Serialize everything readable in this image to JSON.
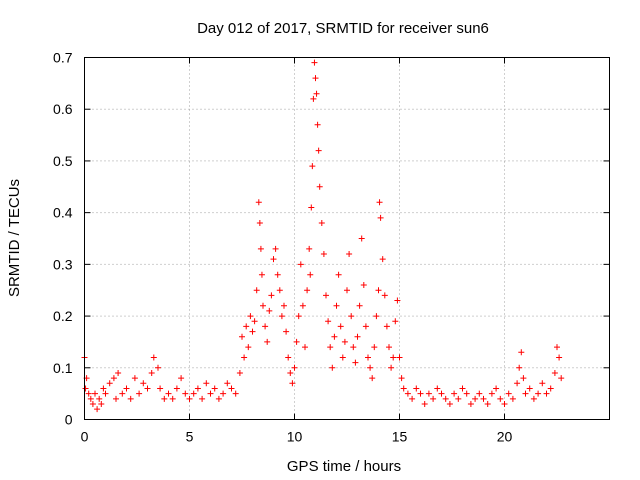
{
  "chart_data": {
    "type": "scatter",
    "title": "Day 012 of 2017, SRMTID for receiver sun6",
    "xlabel": "GPS time / hours",
    "ylabel": "SRMTID / TECUs",
    "xlim": [
      0,
      25
    ],
    "ylim": [
      0,
      0.7
    ],
    "xticks": [
      0,
      5,
      10,
      15,
      20
    ],
    "xtick_labels": [
      "0",
      "5",
      "10",
      "15",
      "20"
    ],
    "yticks": [
      0,
      0.1,
      0.2,
      0.3,
      0.4,
      0.5,
      0.6,
      0.7
    ],
    "ytick_labels": [
      "0",
      "0.1",
      "0.2",
      "0.3",
      "0.4",
      "0.5",
      "0.6",
      "0.7"
    ],
    "grid": true,
    "marker": "+",
    "series": [
      {
        "name": "SRMTID",
        "color": "#ff0000",
        "x": [
          0.0,
          0.05,
          0.1,
          0.2,
          0.3,
          0.4,
          0.5,
          0.6,
          0.7,
          0.8,
          0.9,
          1.0,
          1.2,
          1.4,
          1.5,
          1.6,
          1.8,
          2.0,
          2.2,
          2.4,
          2.6,
          2.8,
          3.0,
          3.2,
          3.3,
          3.5,
          3.6,
          3.8,
          4.0,
          4.2,
          4.4,
          4.6,
          4.8,
          5.0,
          5.2,
          5.4,
          5.6,
          5.8,
          6.0,
          6.2,
          6.4,
          6.6,
          6.8,
          7.0,
          7.2,
          7.4,
          7.5,
          7.6,
          7.7,
          7.8,
          7.9,
          8.0,
          8.1,
          8.2,
          8.3,
          8.35,
          8.4,
          8.45,
          8.5,
          8.6,
          8.7,
          8.8,
          8.9,
          9.0,
          9.1,
          9.2,
          9.3,
          9.4,
          9.5,
          9.6,
          9.7,
          9.8,
          9.9,
          10.0,
          10.1,
          10.2,
          10.3,
          10.4,
          10.5,
          10.6,
          10.7,
          10.75,
          10.8,
          10.85,
          10.9,
          10.95,
          11.0,
          11.05,
          11.1,
          11.15,
          11.2,
          11.3,
          11.4,
          11.5,
          11.6,
          11.7,
          11.8,
          11.9,
          12.0,
          12.1,
          12.2,
          12.3,
          12.4,
          12.5,
          12.6,
          12.7,
          12.8,
          12.9,
          13.0,
          13.1,
          13.2,
          13.3,
          13.4,
          13.5,
          13.6,
          13.7,
          13.8,
          13.9,
          14.0,
          14.05,
          14.1,
          14.2,
          14.3,
          14.4,
          14.5,
          14.6,
          14.7,
          14.8,
          14.9,
          15.0,
          15.1,
          15.2,
          15.4,
          15.6,
          15.8,
          16.0,
          16.2,
          16.4,
          16.6,
          16.8,
          17.0,
          17.2,
          17.4,
          17.6,
          17.8,
          18.0,
          18.2,
          18.4,
          18.6,
          18.8,
          19.0,
          19.2,
          19.4,
          19.6,
          19.8,
          20.0,
          20.2,
          20.4,
          20.6,
          20.7,
          20.8,
          20.9,
          21.0,
          21.2,
          21.4,
          21.6,
          21.8,
          22.0,
          22.2,
          22.4,
          22.5,
          22.6,
          22.7
        ],
        "y": [
          0.12,
          0.06,
          0.08,
          0.05,
          0.04,
          0.03,
          0.05,
          0.02,
          0.04,
          0.03,
          0.06,
          0.05,
          0.07,
          0.08,
          0.04,
          0.09,
          0.05,
          0.06,
          0.04,
          0.08,
          0.05,
          0.07,
          0.06,
          0.09,
          0.12,
          0.1,
          0.06,
          0.04,
          0.05,
          0.04,
          0.06,
          0.08,
          0.05,
          0.04,
          0.05,
          0.06,
          0.04,
          0.07,
          0.05,
          0.06,
          0.04,
          0.05,
          0.07,
          0.06,
          0.05,
          0.09,
          0.16,
          0.12,
          0.18,
          0.14,
          0.2,
          0.17,
          0.19,
          0.25,
          0.42,
          0.38,
          0.33,
          0.28,
          0.22,
          0.18,
          0.15,
          0.21,
          0.24,
          0.31,
          0.33,
          0.28,
          0.25,
          0.2,
          0.22,
          0.17,
          0.12,
          0.09,
          0.07,
          0.1,
          0.15,
          0.2,
          0.3,
          0.22,
          0.14,
          0.25,
          0.33,
          0.28,
          0.41,
          0.49,
          0.62,
          0.69,
          0.66,
          0.63,
          0.57,
          0.52,
          0.45,
          0.38,
          0.32,
          0.24,
          0.19,
          0.14,
          0.1,
          0.16,
          0.22,
          0.28,
          0.18,
          0.12,
          0.15,
          0.25,
          0.32,
          0.2,
          0.14,
          0.11,
          0.16,
          0.22,
          0.35,
          0.26,
          0.18,
          0.12,
          0.1,
          0.08,
          0.14,
          0.2,
          0.25,
          0.42,
          0.39,
          0.31,
          0.24,
          0.18,
          0.14,
          0.1,
          0.12,
          0.19,
          0.23,
          0.12,
          0.08,
          0.06,
          0.05,
          0.04,
          0.06,
          0.05,
          0.03,
          0.05,
          0.04,
          0.06,
          0.05,
          0.04,
          0.03,
          0.05,
          0.04,
          0.06,
          0.05,
          0.03,
          0.04,
          0.05,
          0.04,
          0.03,
          0.05,
          0.06,
          0.04,
          0.03,
          0.05,
          0.04,
          0.07,
          0.1,
          0.13,
          0.08,
          0.05,
          0.06,
          0.04,
          0.05,
          0.07,
          0.05,
          0.06,
          0.09,
          0.14,
          0.12,
          0.08
        ]
      }
    ]
  }
}
